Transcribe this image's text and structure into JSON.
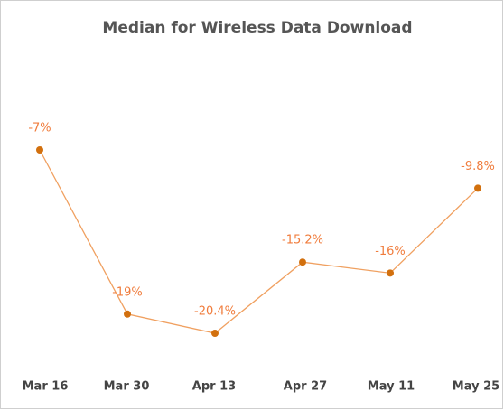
{
  "chart_data": {
    "type": "line",
    "title": "Median for Wireless Data Download",
    "categories": [
      "Mar 16",
      "Mar 30",
      "Apr 13",
      "Apr 27",
      "May 11",
      "May 25"
    ],
    "series": [
      {
        "name": "Median",
        "color": "#f0a060",
        "point_color": "#d2700e",
        "label_color": "#f07c3c",
        "values": [
          -7,
          -19,
          -20.4,
          -15.2,
          -16,
          -9.8
        ],
        "value_labels": [
          "-7%",
          "-19%",
          "-20.4%",
          "-15.2%",
          "-16%",
          "-9.8%"
        ]
      }
    ]
  }
}
